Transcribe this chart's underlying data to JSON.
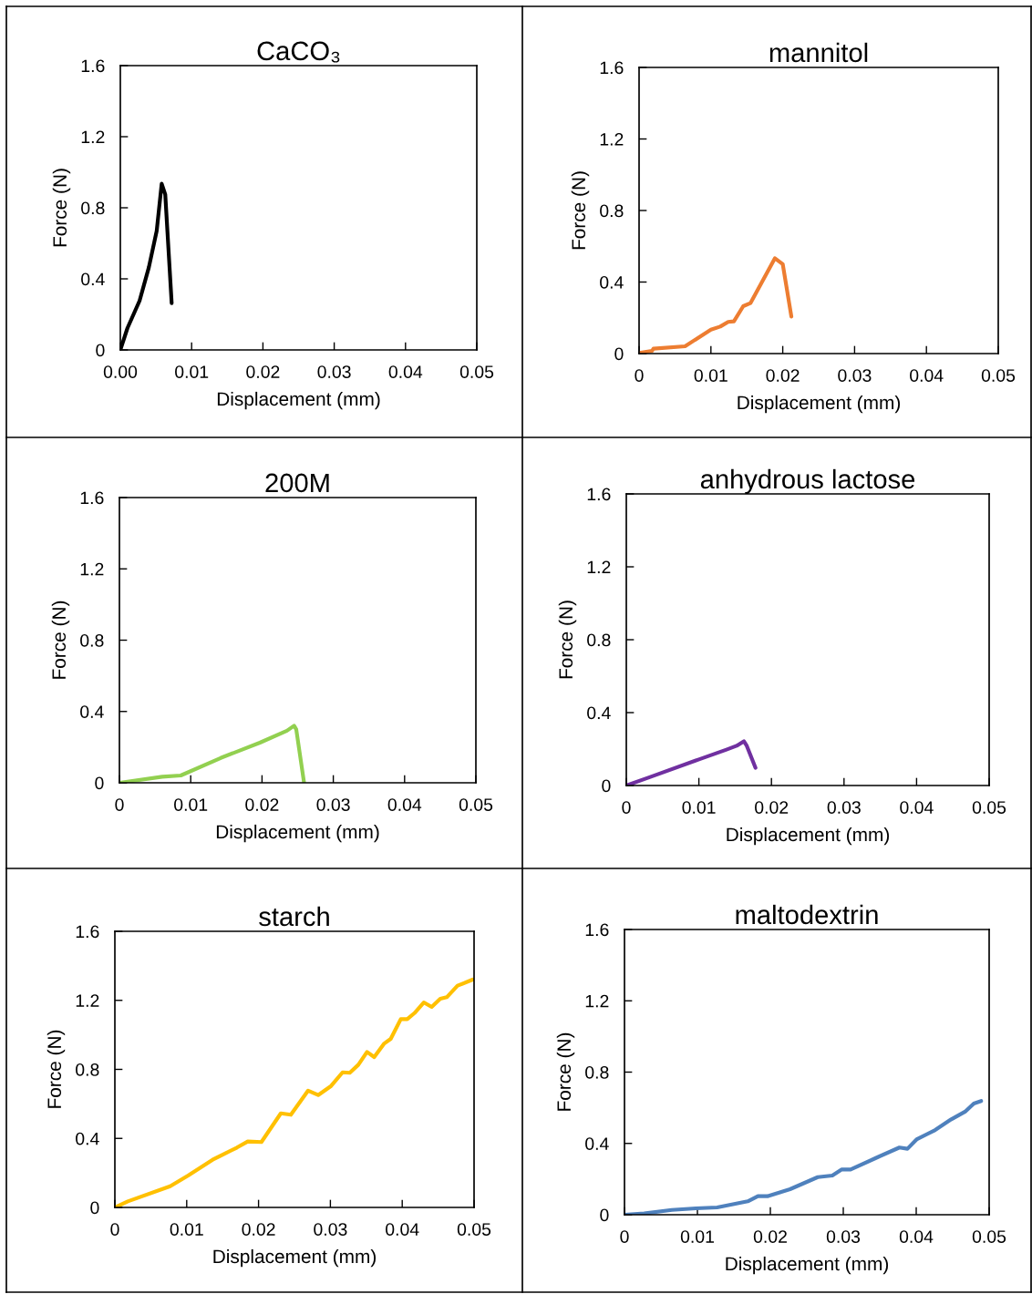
{
  "chart_data": [
    {
      "type": "line",
      "title": "CaCO₃",
      "xlabel": "Displacement (mm)",
      "ylabel": "Force (N)",
      "xlim": [
        0,
        0.05
      ],
      "xticks": [
        {
          "value": 0,
          "label": "0.00"
        },
        0.01,
        0.02,
        0.03,
        0.04,
        0.05
      ],
      "ylim": [
        0,
        1.6
      ],
      "yticks": [
        0,
        0.4,
        0.8,
        1.2,
        1.6
      ],
      "grid": false,
      "line_style": "solid",
      "marker": "none",
      "series": [
        {
          "color": "#000000",
          "x": [
            0,
            0.001,
            0.0027,
            0.004,
            0.0051,
            0.0058,
            0.0063,
            0.0072
          ],
          "values": [
            0,
            0.123,
            0.277,
            0.465,
            0.67,
            0.935,
            0.875,
            0.263
          ]
        }
      ]
    },
    {
      "type": "line",
      "title": "mannitol",
      "xlabel": "Displacement (mm)",
      "ylabel": "Force (N)",
      "xlim": [
        0,
        0.05
      ],
      "xticks": [
        0,
        0.01,
        0.02,
        0.03,
        0.04,
        0.05
      ],
      "ylim": [
        0,
        1.6
      ],
      "yticks": [
        0,
        0.4,
        0.8,
        1.2,
        1.6
      ],
      "grid": false,
      "line_style": "solid",
      "marker": "none",
      "series": [
        {
          "color": "#ed7d31",
          "x": [
            0,
            0.0018,
            0.002,
            0.0064,
            0.01,
            0.0113,
            0.0124,
            0.0132,
            0.0145,
            0.0155,
            0.0189,
            0.02,
            0.0212
          ],
          "values": [
            0.003,
            0.015,
            0.027,
            0.041,
            0.134,
            0.151,
            0.177,
            0.18,
            0.265,
            0.282,
            0.533,
            0.5,
            0.207
          ]
        }
      ]
    },
    {
      "type": "line",
      "title": "200M",
      "xlabel": "Displacement (mm)",
      "ylabel": "Force (N)",
      "xlim": [
        0,
        0.05
      ],
      "xticks": [
        0,
        0.01,
        0.02,
        0.03,
        0.04,
        0.05
      ],
      "ylim": [
        0,
        1.6
      ],
      "yticks": [
        0,
        0.4,
        0.8,
        1.2,
        1.6
      ],
      "grid": false,
      "line_style": "solid",
      "marker": "none",
      "series": [
        {
          "color": "#92d050",
          "x": [
            0,
            0.006,
            0.0086,
            0.0142,
            0.0197,
            0.0235,
            0.0245,
            0.0248,
            0.0259
          ],
          "values": [
            0,
            0.034,
            0.041,
            0.139,
            0.225,
            0.292,
            0.32,
            0.3,
            0
          ]
        }
      ]
    },
    {
      "type": "line",
      "title": "anhydrous lactose",
      "xlabel": "Displacement (mm)",
      "ylabel": "Force (N)",
      "xlim": [
        0,
        0.05
      ],
      "xticks": [
        0,
        0.01,
        0.02,
        0.03,
        0.04,
        0.05
      ],
      "ylim": [
        0,
        1.6
      ],
      "yticks": [
        0,
        0.4,
        0.8,
        1.2,
        1.6
      ],
      "grid": false,
      "line_style": "solid",
      "marker": "none",
      "series": [
        {
          "color": "#7030a0",
          "x": [
            0,
            0.0033,
            0.01,
            0.0138,
            0.0152,
            0.0162,
            0.0166,
            0.0178
          ],
          "values": [
            0,
            0.047,
            0.143,
            0.197,
            0.218,
            0.243,
            0.218,
            0.097
          ]
        }
      ]
    },
    {
      "type": "line",
      "title": "starch",
      "xlabel": "Displacement (mm)",
      "ylabel": "Force (N)",
      "xlim": [
        0,
        0.05
      ],
      "xticks": [
        0,
        0.01,
        0.02,
        0.03,
        0.04,
        0.05
      ],
      "ylim": [
        0,
        1.6
      ],
      "yticks": [
        0,
        0.4,
        0.8,
        1.2,
        1.6
      ],
      "grid": false,
      "line_style": "solid",
      "marker": "none",
      "series": [
        {
          "color": "#ffc000",
          "x": [
            0,
            0.0018,
            0.0077,
            0.0102,
            0.0136,
            0.017,
            0.0185,
            0.0204,
            0.0231,
            0.0245,
            0.0269,
            0.0283,
            0.0301,
            0.0317,
            0.0327,
            0.0339,
            0.0351,
            0.0361,
            0.0375,
            0.0384,
            0.0398,
            0.0407,
            0.0417,
            0.043,
            0.0441,
            0.0453,
            0.0462,
            0.0477,
            0.0498
          ],
          "values": [
            0,
            0.035,
            0.123,
            0.185,
            0.276,
            0.347,
            0.382,
            0.379,
            0.545,
            0.537,
            0.677,
            0.651,
            0.704,
            0.783,
            0.78,
            0.827,
            0.901,
            0.871,
            0.95,
            0.977,
            1.091,
            1.091,
            1.126,
            1.188,
            1.162,
            1.209,
            1.218,
            1.285,
            1.32
          ]
        }
      ]
    },
    {
      "type": "line",
      "title": "maltodextrin",
      "xlabel": "Displacement (mm)",
      "ylabel": "Force (N)",
      "xlim": [
        0,
        0.05
      ],
      "xticks": [
        0,
        0.01,
        0.02,
        0.03,
        0.04,
        0.05
      ],
      "ylim": [
        0,
        1.6
      ],
      "yticks": [
        0,
        0.4,
        0.8,
        1.2,
        1.6
      ],
      "grid": false,
      "line_style": "solid",
      "marker": "none",
      "series": [
        {
          "color": "#4f81bd",
          "x": [
            0,
            0.0027,
            0.0065,
            0.0098,
            0.0127,
            0.0169,
            0.0183,
            0.0196,
            0.0227,
            0.0265,
            0.0285,
            0.0298,
            0.031,
            0.0344,
            0.0377,
            0.0388,
            0.0401,
            0.0426,
            0.0448,
            0.0467,
            0.0479,
            0.0489
          ],
          "values": [
            0,
            0.007,
            0.027,
            0.036,
            0.041,
            0.075,
            0.104,
            0.104,
            0.143,
            0.211,
            0.22,
            0.254,
            0.254,
            0.317,
            0.377,
            0.37,
            0.424,
            0.475,
            0.535,
            0.578,
            0.624,
            0.638
          ]
        }
      ]
    }
  ]
}
